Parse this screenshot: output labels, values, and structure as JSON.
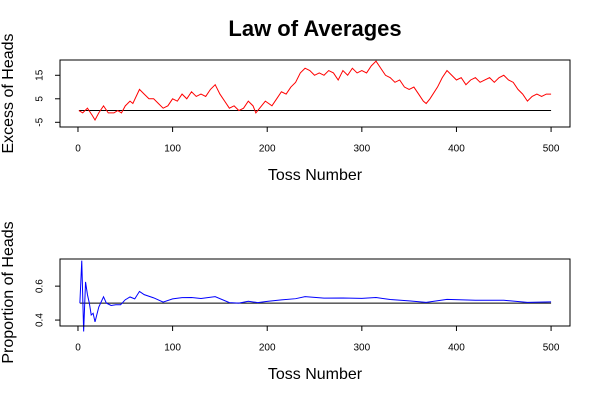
{
  "title": "Law of Averages",
  "chart_data": [
    {
      "type": "line",
      "xlabel": "Toss Number",
      "ylabel": "Excess of Heads",
      "color": "#ff0000",
      "hline": 0,
      "xlim": [
        -19,
        520
      ],
      "xticks": [
        0,
        100,
        200,
        300,
        400,
        500
      ],
      "ylim": [
        -7,
        21.5
      ],
      "yticks": [
        -5,
        5,
        15
      ],
      "x": [
        1,
        5,
        10,
        15,
        18,
        22,
        27,
        32,
        38,
        42,
        46,
        50,
        55,
        58,
        65,
        70,
        75,
        80,
        85,
        90,
        95,
        100,
        105,
        110,
        115,
        120,
        125,
        130,
        135,
        140,
        145,
        150,
        155,
        160,
        165,
        170,
        175,
        180,
        185,
        188,
        192,
        198,
        205,
        210,
        215,
        220,
        225,
        230,
        235,
        240,
        245,
        250,
        255,
        260,
        265,
        270,
        275,
        280,
        285,
        290,
        295,
        300,
        305,
        310,
        315,
        320,
        325,
        330,
        335,
        340,
        345,
        350,
        355,
        360,
        365,
        368,
        372,
        380,
        385,
        390,
        395,
        400,
        405,
        410,
        415,
        420,
        425,
        430,
        435,
        440,
        445,
        450,
        455,
        460,
        465,
        470,
        475,
        480,
        485,
        490,
        495,
        500
      ],
      "values": [
        0,
        -1,
        1,
        -2,
        -4,
        -1,
        2,
        -1,
        -1,
        0,
        -1,
        2,
        4,
        3,
        9,
        7,
        5,
        5,
        3,
        1,
        2,
        5,
        4,
        7,
        5,
        8,
        6,
        7,
        6,
        9,
        11,
        7,
        4,
        1,
        2,
        0,
        1,
        4,
        2,
        -1,
        1,
        4,
        2,
        5,
        8,
        7,
        10,
        12,
        16,
        18,
        17,
        15,
        16,
        15,
        17,
        16,
        13,
        17,
        15,
        18,
        16,
        17,
        16,
        19,
        21,
        18,
        15,
        14,
        12,
        13,
        10,
        9,
        10,
        7,
        4,
        3,
        5,
        10,
        14,
        17,
        15,
        13,
        14,
        11,
        13,
        14,
        12,
        13,
        14,
        12,
        14,
        15,
        13,
        12,
        9,
        7,
        4,
        6,
        7,
        6,
        7,
        7
      ]
    },
    {
      "type": "line",
      "xlabel": "Toss Number",
      "ylabel": "Proportion of Heads",
      "color": "#0000ff",
      "hline": 0.5,
      "xlim": [
        -19,
        520
      ],
      "xticks": [
        0,
        100,
        200,
        300,
        400,
        500
      ],
      "ylim": [
        0.365,
        0.76
      ],
      "yticks": [
        0.4,
        0.6
      ],
      "x": [
        2,
        4,
        6,
        8,
        10,
        12,
        14,
        16,
        18,
        22,
        27,
        30,
        35,
        40,
        45,
        50,
        55,
        60,
        65,
        70,
        80,
        90,
        100,
        110,
        120,
        130,
        145,
        160,
        170,
        180,
        190,
        200,
        215,
        230,
        240,
        260,
        280,
        300,
        315,
        330,
        350,
        368,
        390,
        420,
        450,
        475,
        500
      ],
      "values": [
        0.5,
        0.75,
        0.333,
        0.625,
        0.55,
        0.5,
        0.43,
        0.44,
        0.389,
        0.477,
        0.537,
        0.5,
        0.486,
        0.49,
        0.49,
        0.52,
        0.536,
        0.525,
        0.569,
        0.55,
        0.531,
        0.506,
        0.525,
        0.532,
        0.533,
        0.527,
        0.538,
        0.503,
        0.5,
        0.511,
        0.503,
        0.51,
        0.519,
        0.526,
        0.538,
        0.529,
        0.53,
        0.528,
        0.533,
        0.521,
        0.513,
        0.504,
        0.522,
        0.517,
        0.517,
        0.504,
        0.507
      ]
    }
  ]
}
